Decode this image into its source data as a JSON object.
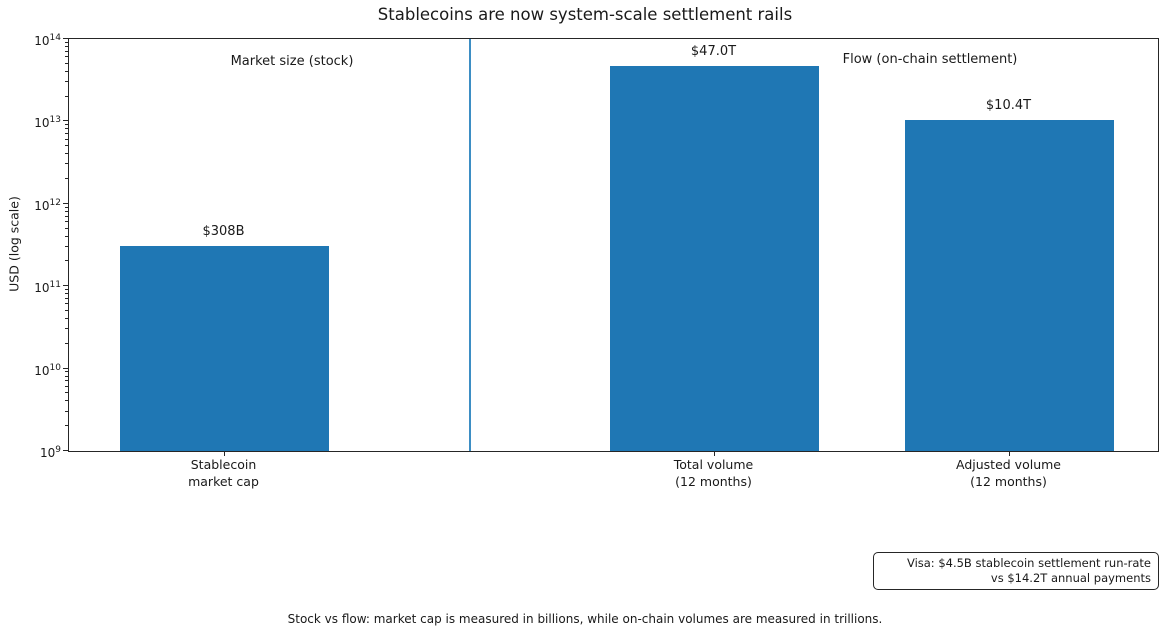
{
  "page": {
    "background": "#ffffff"
  },
  "chart_data": {
    "type": "bar",
    "title": "Stablecoins are now system-scale settlement rails",
    "ylabel": "USD (log scale)",
    "xlabel": "",
    "yscale": "log",
    "ylim": [
      1000000000,
      100000000000000
    ],
    "grid": false,
    "legend": null,
    "categories": [
      "Stablecoin\nmarket cap",
      "Total volume\n(12 months)",
      "Adjusted volume\n(12 months)"
    ],
    "values": [
      308000000000,
      47000000000000,
      10400000000000
    ],
    "bar_labels": [
      "$308B",
      "$47.0T",
      "$10.4T"
    ],
    "bar_color": "#1f77b4",
    "divider_color": "#3d8ec4",
    "group_labels": [
      {
        "text": "Market size (stock)"
      },
      {
        "text": "Flow (on-chain settlement)"
      }
    ],
    "annotation": {
      "lines": [
        "Visa: $4.5B stablecoin settlement run-rate",
        "vs $14.2T annual payments"
      ]
    },
    "caption": "Stock vs flow: market cap is measured in billions, while on-chain volumes are measured in trillions."
  }
}
